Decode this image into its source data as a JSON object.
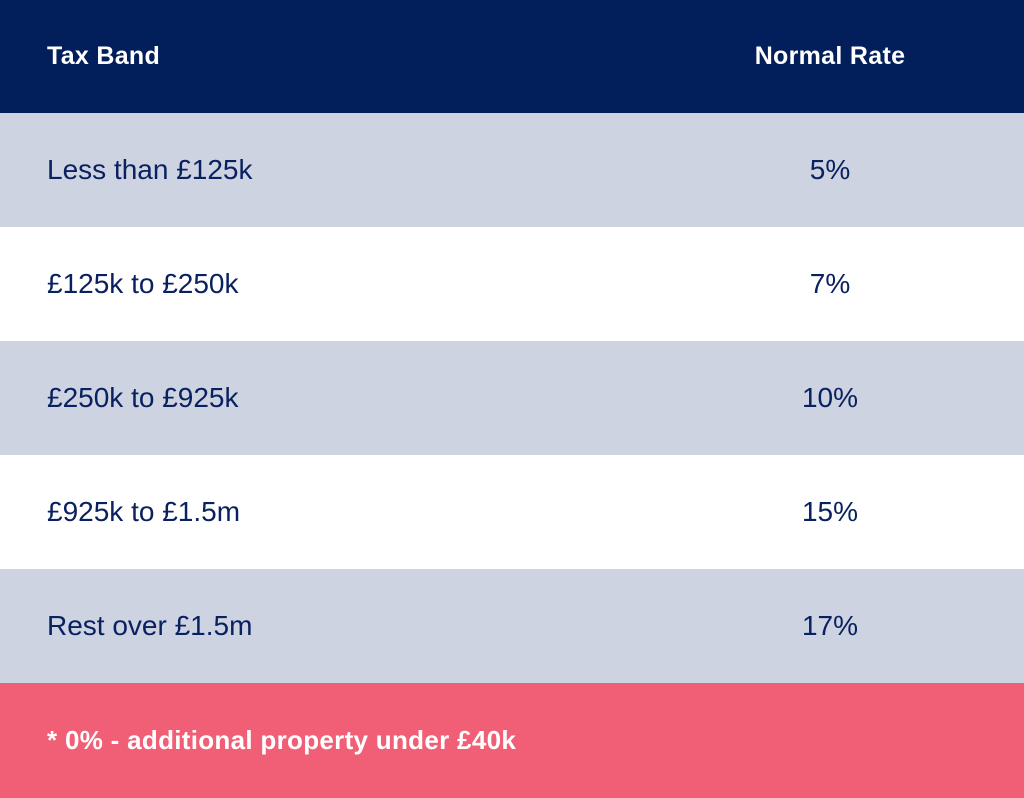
{
  "colors": {
    "header_bg": "#021E5B",
    "row_alt_bg": "#CDD3E1",
    "row_bg": "#FFFFFF",
    "footer_bg": "#F05F75",
    "text_navy": "#0A2161",
    "text_white": "#FFFFFF"
  },
  "table": {
    "columns": [
      "Tax Band",
      "Normal Rate"
    ],
    "rows": [
      {
        "band": "Less than £125k",
        "rate": "5%"
      },
      {
        "band": "£125k to £250k",
        "rate": "7%"
      },
      {
        "band": "£250k to £925k",
        "rate": "10%"
      },
      {
        "band": "£925k to £1.5m",
        "rate": "15%"
      },
      {
        "band": "Rest over £1.5m",
        "rate": "17%"
      }
    ],
    "footnote": "* 0% - additional property under £40k"
  },
  "chart_data": {
    "type": "table",
    "title": "",
    "columns": [
      "Tax Band",
      "Normal Rate"
    ],
    "rows": [
      [
        "Less than £125k",
        "5%"
      ],
      [
        "£125k to £250k",
        "7%"
      ],
      [
        "£250k to £925k",
        "10%"
      ],
      [
        "£925k to £1.5m",
        "15%"
      ],
      [
        "Rest over £1.5m",
        "17%"
      ]
    ],
    "rates_numeric_percent": [
      5,
      7,
      10,
      15,
      17
    ],
    "footnote": "* 0% - additional property under £40k",
    "layout": {
      "row_striping": [
        "alt",
        "plain",
        "alt",
        "plain",
        "alt"
      ],
      "rate_column_alignment": "center",
      "band_column_alignment": "left"
    }
  }
}
